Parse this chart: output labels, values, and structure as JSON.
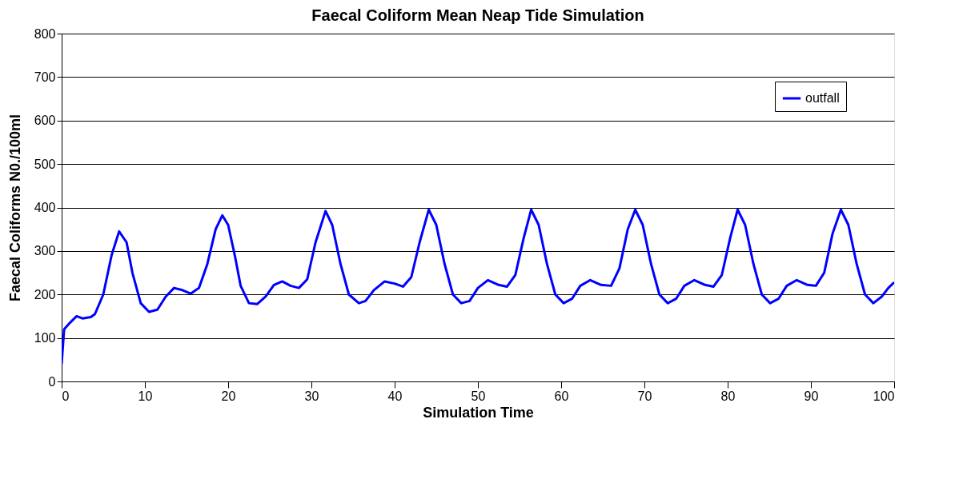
{
  "chart_data": {
    "type": "line",
    "title": "Faecal Coliform Mean Neap Tide Simulation",
    "xlabel": "Simulation Time",
    "ylabel": "Faecal Coliforms N0./100ml",
    "xlim": [
      0,
      100
    ],
    "xticks": [
      0,
      10,
      20,
      30,
      40,
      50,
      60,
      70,
      80,
      90,
      100
    ],
    "ylim": [
      0,
      800
    ],
    "yticks": [
      0,
      100,
      200,
      300,
      400,
      500,
      600,
      700,
      800
    ],
    "grid": "y",
    "legend": "top right",
    "marker": "none",
    "line_style": "solid",
    "series": [
      {
        "name": "outfall",
        "color": "#0000ff",
        "x": [
          0,
          0.3,
          1,
          1.8,
          2.5,
          3.5,
          4,
          5,
          6,
          6.9,
          7.8,
          8.5,
          9.5,
          10.5,
          11.5,
          12.5,
          13.5,
          14.5,
          15.5,
          16.5,
          17.5,
          18.5,
          19.3,
          20,
          20.8,
          21.5,
          22.5,
          23.5,
          24.5,
          25.5,
          26.5,
          27.5,
          28.5,
          29.5,
          30.5,
          31.7,
          32.5,
          33.5,
          34.5,
          35.7,
          36.5,
          37.5,
          38.8,
          40,
          41,
          42,
          43,
          44.1,
          45,
          46,
          47,
          48,
          49,
          50,
          51.2,
          52.5,
          53.5,
          54.5,
          55.5,
          56.4,
          57.3,
          58.3,
          59.3,
          60.3,
          61.3,
          62.3,
          63.5,
          64.8,
          66,
          67,
          68,
          68.9,
          69.8,
          70.8,
          71.8,
          72.8,
          73.8,
          74.8,
          76,
          77.3,
          78.3,
          79.3,
          80.3,
          81.2,
          82.1,
          83.1,
          84.1,
          85.1,
          86.1,
          87.1,
          88.3,
          89.6,
          90.6,
          91.6,
          92.6,
          93.6,
          94.5,
          95.5,
          96.5,
          97.5,
          98.5,
          99.3,
          100
        ],
        "values": [
          40,
          120,
          135,
          150,
          145,
          148,
          155,
          200,
          290,
          345,
          320,
          250,
          180,
          160,
          165,
          195,
          215,
          210,
          202,
          215,
          270,
          350,
          382,
          360,
          290,
          220,
          180,
          178,
          195,
          222,
          230,
          220,
          215,
          235,
          320,
          392,
          360,
          270,
          200,
          180,
          185,
          210,
          230,
          225,
          218,
          240,
          320,
          395,
          360,
          270,
          200,
          180,
          185,
          215,
          233,
          222,
          218,
          245,
          330,
          395,
          360,
          270,
          200,
          180,
          190,
          220,
          233,
          222,
          220,
          260,
          350,
          395,
          360,
          270,
          200,
          180,
          190,
          220,
          233,
          222,
          218,
          245,
          330,
          395,
          360,
          270,
          200,
          180,
          190,
          220,
          233,
          222,
          220,
          250,
          340,
          395,
          360,
          270,
          200,
          180,
          195,
          215,
          228
        ]
      }
    ]
  }
}
